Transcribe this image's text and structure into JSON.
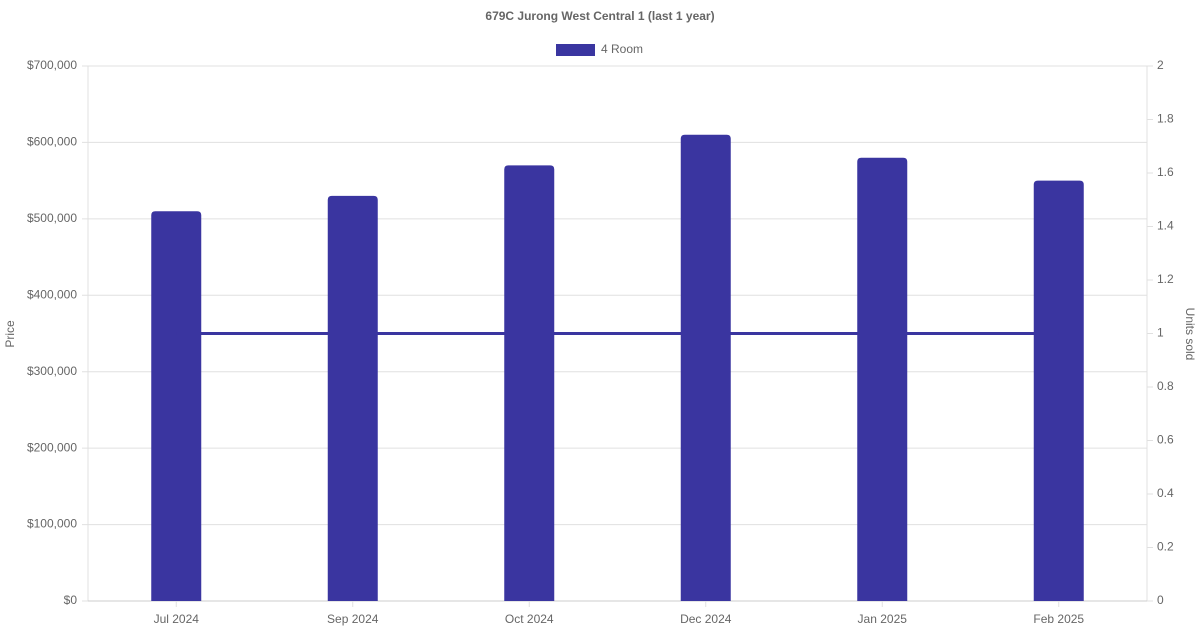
{
  "chart_data": {
    "type": "bar",
    "title": "679C Jurong West Central 1 (last 1 year)",
    "y_label": "Price",
    "y2_label": "Units sold",
    "categories": [
      "Jul 2024",
      "Sep 2024",
      "Oct 2024",
      "Dec 2024",
      "Jan 2025",
      "Feb 2025"
    ],
    "series": [
      {
        "name": "4 Room",
        "type": "bar",
        "color": "#3a35a0",
        "values": [
          510000,
          530000,
          570000,
          610000,
          580000,
          550000
        ]
      },
      {
        "type": "line",
        "axis": "y2",
        "color": "#3a35a0",
        "values": [
          1,
          1,
          1,
          1,
          1,
          1
        ]
      }
    ],
    "ylim": [
      0,
      700000
    ],
    "yticks": [
      {
        "value": 0,
        "label": "$0"
      },
      {
        "value": 100000,
        "label": "$100,000"
      },
      {
        "value": 200000,
        "label": "$200,000"
      },
      {
        "value": 300000,
        "label": "$300,000"
      },
      {
        "value": 400000,
        "label": "$400,000"
      },
      {
        "value": 500000,
        "label": "$500,000"
      },
      {
        "value": 600000,
        "label": "$600,000"
      },
      {
        "value": 700000,
        "label": "$700,000"
      }
    ],
    "y2lim": [
      0,
      2
    ],
    "y2ticks": [
      0,
      0.2,
      0.4,
      0.6,
      0.8,
      1,
      1.2,
      1.4,
      1.6,
      1.8,
      2
    ],
    "grid": true,
    "legend": "top"
  }
}
